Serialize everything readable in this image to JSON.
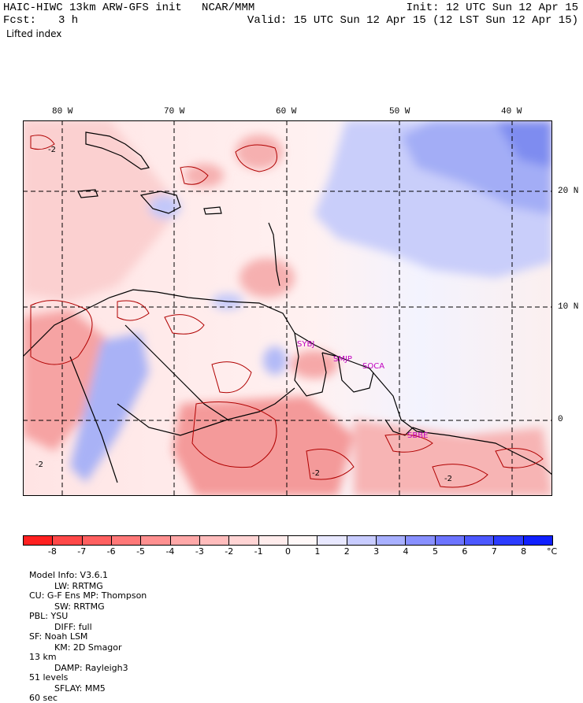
{
  "header": {
    "title": "HAIC-HIWC 13km ARW-GFS init   NCAR/MMM",
    "init": "Init: 12 UTC Sun 12 Apr 15",
    "fcst_label": "Fcst:",
    "fcst_value": "3 h",
    "valid": "Valid: 15 UTC Sun 12 Apr 15 (12 LST Sun 12 Apr 15)",
    "field": "Lifted index"
  },
  "map": {
    "lon_labels": [
      "80 W",
      "70 W",
      "60 W",
      "50 W",
      "40 W"
    ],
    "lat_labels": [
      "20 N",
      "10 N",
      "0"
    ],
    "contour_labels": [
      "-2",
      "-2",
      "-2",
      "-2"
    ],
    "stations": [
      "SYBJ",
      "SMJP",
      "SOCA",
      "SBBE"
    ],
    "colors": {
      "warm": "#f08a8a",
      "warm_light": "#f9c8c8",
      "neutral": "#fff0f0",
      "cool_light": "#d8dcfb",
      "cool": "#9ca6f5",
      "cool_dark": "#6a78ee",
      "station": "#c000c0"
    }
  },
  "colorbar": {
    "ticks": [
      "-8",
      "-7",
      "-6",
      "-5",
      "-4",
      "-3",
      "-2",
      "-1",
      "0",
      "1",
      "2",
      "3",
      "4",
      "5",
      "6",
      "7",
      "8"
    ],
    "unit": "°C",
    "colors": [
      "#ff2020",
      "#ff4848",
      "#ff6060",
      "#ff7878",
      "#ff9090",
      "#ffa8a8",
      "#ffbcbc",
      "#ffd4d4",
      "#ffecec",
      "#fff8f8",
      "#e8e8ff",
      "#c8ccff",
      "#a8b0ff",
      "#8890ff",
      "#6c74ff",
      "#4c58ff",
      "#2c3cff",
      "#1020ff"
    ]
  },
  "footer": {
    "line1_a": "Model Info: V3.6.1",
    "line1_b": "CU: G-F Ens MP: Thompson",
    "line1_c": "PBL: YSU",
    "line1_d": "SF: Noah LSM",
    "line1_e": "13 km",
    "line1_f": "51 levels",
    "line1_g": "60 sec",
    "line2_a": "LW: RRTMG",
    "line2_b": "SW: RRTMG",
    "line2_c": "DIFF: full",
    "line2_d": "KM: 2D Smagor",
    "line2_e": "DAMP: Rayleigh3",
    "line2_f": "SFLAY: MM5"
  }
}
